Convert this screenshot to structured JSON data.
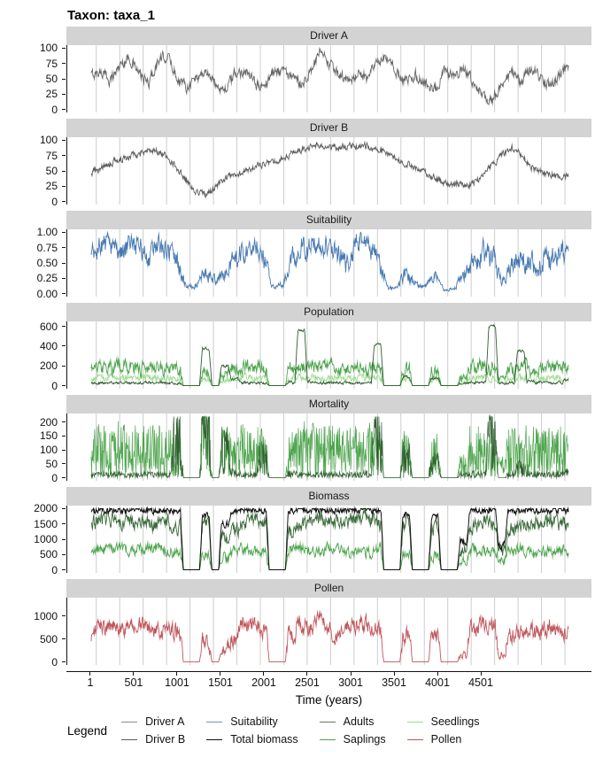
{
  "title": "Taxon: taxa_1",
  "legend": {
    "title": "Legend",
    "entries": [
      {
        "label": "Driver A",
        "color": "#8c8c8c"
      },
      {
        "label": "Driver B",
        "color": "#5c5c5c"
      },
      {
        "label": "Suitability",
        "color": "#6f94c4"
      },
      {
        "label": "Total biomass",
        "color": "#111111"
      },
      {
        "label": "Adults",
        "color": "#5f7d57"
      },
      {
        "label": "Saplings",
        "color": "#4da44d"
      },
      {
        "label": "Seedlings",
        "color": "#a0dd94"
      },
      {
        "label": "Pollen",
        "color": "#c0565c"
      }
    ]
  },
  "chart_data": {
    "type": "line",
    "xlabel": "Time (years)",
    "x_domain": [
      1,
      5501
    ],
    "x_ticks": [
      1,
      501,
      1001,
      1501,
      2001,
      2501,
      3001,
      3501,
      4001,
      4501
    ],
    "grid": {
      "start": 60,
      "step": 270,
      "count": 21,
      "color": "#cccccc"
    },
    "x": [
      1,
      111,
      221,
      331,
      441,
      551,
      661,
      771,
      881,
      991,
      1101,
      1211,
      1321,
      1431,
      1541,
      1651,
      1761,
      1871,
      1981,
      2091,
      2201,
      2311,
      2421,
      2531,
      2641,
      2751,
      2861,
      2971,
      3081,
      3191,
      3301,
      3411,
      3521,
      3631,
      3741,
      3851,
      3961,
      4071,
      4181,
      4291,
      4401,
      4511,
      4621,
      4731,
      4841,
      4951,
      5061,
      5171,
      5281,
      5391,
      5501
    ],
    "panels": [
      {
        "title": "Driver A",
        "ylim": [
          0,
          100
        ],
        "yticks": [
          {
            "v": 0,
            "label": "0"
          },
          {
            "v": 25,
            "label": "25"
          },
          {
            "v": 50,
            "label": "50"
          },
          {
            "v": 75,
            "label": "75"
          },
          {
            "v": 100,
            "label": "100"
          }
        ],
        "series": [
          {
            "name": "driver_a",
            "color": "#666666",
            "mode": "walk",
            "amp": 7,
            "nscale": 0,
            "sharp": false,
            "width": 0.9,
            "values": [
              55,
              62,
              48,
              72,
              85,
              58,
              42,
              78,
              88,
              52,
              38,
              52,
              62,
              42,
              32,
              55,
              65,
              45,
              35,
              60,
              68,
              50,
              42,
              62,
              92,
              72,
              55,
              45,
              60,
              50,
              78,
              82,
              60,
              45,
              55,
              42,
              32,
              62,
              50,
              68,
              45,
              18,
              12,
              45,
              60,
              42,
              68,
              55,
              38,
              52,
              72
            ]
          }
        ]
      },
      {
        "title": "Driver B",
        "ylim": [
          0,
          100
        ],
        "yticks": [
          {
            "v": 0,
            "label": "0"
          },
          {
            "v": 25,
            "label": "25"
          },
          {
            "v": 50,
            "label": "50"
          },
          {
            "v": 75,
            "label": "75"
          },
          {
            "v": 100,
            "label": "100"
          }
        ],
        "series": [
          {
            "name": "driver_b",
            "color": "#5c5c5c",
            "mode": "walk",
            "amp": 4.5,
            "nscale": 0,
            "sharp": false,
            "width": 0.9,
            "values": [
              48,
              55,
              62,
              68,
              74,
              80,
              85,
              82,
              72,
              55,
              35,
              18,
              12,
              22,
              35,
              45,
              50,
              55,
              60,
              65,
              70,
              78,
              84,
              88,
              91,
              90,
              88,
              89,
              91,
              90,
              86,
              80,
              70,
              62,
              55,
              46,
              38,
              32,
              28,
              26,
              30,
              42,
              58,
              75,
              88,
              78,
              58,
              48,
              44,
              42,
              40
            ]
          }
        ]
      },
      {
        "title": "Suitability",
        "ylim": [
          0,
          1
        ],
        "yticks": [
          {
            "v": 0,
            "label": "0.00"
          },
          {
            "v": 0.25,
            "label": "0.25"
          },
          {
            "v": 0.5,
            "label": "0.50"
          },
          {
            "v": 0.75,
            "label": "0.75"
          },
          {
            "v": 1,
            "label": "1.00"
          }
        ],
        "series": [
          {
            "name": "suitability",
            "color": "#4678b0",
            "mode": "walk",
            "amp": 0.15,
            "nscale": 0.5,
            "sharp": false,
            "width": 0.9,
            "values": [
              0.55,
              0.75,
              0.85,
              0.65,
              0.8,
              0.75,
              0.6,
              0.8,
              0.7,
              0.5,
              0.1,
              0.15,
              0.35,
              0.2,
              0.3,
              0.5,
              0.7,
              0.8,
              0.6,
              0.1,
              0.15,
              0.5,
              0.8,
              0.7,
              0.85,
              0.75,
              0.6,
              0.5,
              0.9,
              0.85,
              0.6,
              0.1,
              0.08,
              0.35,
              0.15,
              0.1,
              0.3,
              0.05,
              0.08,
              0.3,
              0.5,
              0.65,
              0.6,
              0.2,
              0.45,
              0.6,
              0.5,
              0.45,
              0.55,
              0.65,
              0.6
            ]
          }
        ]
      },
      {
        "title": "Population",
        "ylim": [
          0,
          620
        ],
        "yticks": [
          {
            "v": 0,
            "label": "0"
          },
          {
            "v": 200,
            "label": "200"
          },
          {
            "v": 400,
            "label": "400"
          },
          {
            "v": 600,
            "label": "600"
          }
        ],
        "series": [
          {
            "name": "seedlings",
            "color": "#a0dd94",
            "mode": "walk",
            "amp": 28,
            "nscale": 0.12,
            "sharp": true,
            "width": 0.9,
            "values": [
              70,
              80,
              75,
              85,
              70,
              78,
              80,
              75,
              72,
              65,
              0,
              0,
              60,
              0,
              50,
              70,
              80,
              75,
              70,
              0,
              0,
              75,
              80,
              78,
              75,
              80,
              75,
              72,
              78,
              80,
              75,
              0,
              0,
              65,
              0,
              0,
              60,
              0,
              0,
              35,
              75,
              80,
              75,
              30,
              70,
              78,
              75,
              72,
              75,
              78,
              75
            ]
          },
          {
            "name": "saplings",
            "color": "#4da44d",
            "mode": "walk",
            "amp": 55,
            "nscale": 0.25,
            "sharp": true,
            "width": 0.9,
            "values": [
              170,
              190,
              180,
              200,
              170,
              185,
              190,
              180,
              175,
              160,
              0,
              0,
              150,
              0,
              120,
              170,
              190,
              180,
              170,
              0,
              0,
              180,
              190,
              185,
              180,
              190,
              180,
              175,
              185,
              190,
              180,
              0,
              0,
              160,
              0,
              0,
              150,
              0,
              0,
              80,
              180,
              190,
              180,
              70,
              170,
              185,
              180,
              175,
              180,
              185,
              180
            ]
          },
          {
            "name": "adults",
            "color": "#2f5d2f",
            "mode": "walk",
            "amp": 12,
            "nscale": 0.04,
            "sharp": true,
            "width": 0.9,
            "values": [
              25,
              28,
              30,
              28,
              26,
              28,
              30,
              28,
              27,
              25,
              0,
              0,
              380,
              0,
              200,
              60,
              30,
              28,
              27,
              0,
              0,
              30,
              560,
              40,
              30,
              28,
              30,
              28,
              27,
              30,
              420,
              0,
              0,
              90,
              0,
              0,
              80,
              0,
              0,
              20,
              30,
              40,
              600,
              20,
              30,
              350,
              40,
              30,
              28,
              30,
              60
            ]
          }
        ]
      },
      {
        "title": "Mortality",
        "ylim": [
          0,
          220
        ],
        "yticks": [
          {
            "v": 0,
            "label": "0"
          },
          {
            "v": 50,
            "label": "50"
          },
          {
            "v": 100,
            "label": "100"
          },
          {
            "v": 150,
            "label": "150"
          },
          {
            "v": 200,
            "label": "200"
          }
        ],
        "series": [
          {
            "name": "saplings_mortality",
            "color": "#4da44d",
            "mode": "spike",
            "amp": 1,
            "nscale": 0,
            "sharp": true,
            "width": 0.7,
            "values": [
              80,
              90,
              85,
              95,
              80,
              88,
              90,
              85,
              82,
              75,
              0,
              0,
              140,
              0,
              90,
              80,
              90,
              85,
              80,
              0,
              0,
              85,
              95,
              90,
              85,
              90,
              85,
              82,
              88,
              90,
              85,
              0,
              0,
              80,
              0,
              0,
              75,
              0,
              0,
              40,
              85,
              90,
              85,
              35,
              80,
              88,
              85,
              82,
              85,
              88,
              85
            ]
          },
          {
            "name": "adults_mortality",
            "color": "#2f5d2f",
            "mode": "spike",
            "amp": 1,
            "nscale": 0,
            "sharp": true,
            "width": 0.7,
            "values": [
              8,
              10,
              9,
              10,
              8,
              9,
              10,
              9,
              9,
              120,
              0,
              0,
              180,
              0,
              90,
              15,
              10,
              9,
              60,
              0,
              0,
              12,
              10,
              9,
              10,
              9,
              10,
              9,
              9,
              12,
              170,
              0,
              0,
              60,
              0,
              0,
              50,
              0,
              0,
              10,
              12,
              10,
              150,
              0,
              10,
              30,
              10,
              9,
              10,
              12,
              15
            ]
          }
        ]
      },
      {
        "title": "Biomass",
        "ylim": [
          0,
          2000
        ],
        "yticks": [
          {
            "v": 0,
            "label": "0"
          },
          {
            "v": 500,
            "label": "500"
          },
          {
            "v": 1000,
            "label": "1000"
          },
          {
            "v": 1500,
            "label": "1500"
          },
          {
            "v": 2000,
            "label": "2000"
          }
        ],
        "series": [
          {
            "name": "saplings_biomass",
            "color": "#4da44d",
            "mode": "walk",
            "amp": 140,
            "nscale": 0.2,
            "sharp": true,
            "width": 0.9,
            "values": [
              600,
              700,
              650,
              700,
              600,
              650,
              700,
              750,
              600,
              550,
              0,
              0,
              500,
              0,
              400,
              650,
              700,
              600,
              550,
              0,
              0,
              650,
              700,
              600,
              550,
              700,
              650,
              500,
              550,
              600,
              650,
              0,
              0,
              500,
              0,
              0,
              450,
              0,
              0,
              300,
              650,
              600,
              650,
              300,
              600,
              650,
              600,
              550,
              600,
              650,
              600
            ]
          },
          {
            "name": "adults_biomass",
            "color": "#3a6b3a",
            "mode": "walk",
            "amp": 190,
            "nscale": 0.2,
            "sharp": true,
            "width": 0.9,
            "values": [
              1500,
              1600,
              1650,
              1500,
              1550,
              1600,
              1500,
              1450,
              1550,
              1400,
              0,
              0,
              1500,
              0,
              1100,
              1300,
              1500,
              1600,
              1550,
              0,
              0,
              1300,
              1500,
              1600,
              1650,
              1500,
              1550,
              1650,
              1600,
              1650,
              1500,
              0,
              0,
              1500,
              0,
              0,
              1400,
              0,
              0,
              600,
              1400,
              1550,
              1500,
              600,
              1300,
              1450,
              1500,
              1550,
              1600,
              1500,
              1550
            ]
          },
          {
            "name": "total_biomass",
            "color": "#111111",
            "mode": "walk",
            "amp": 90,
            "nscale": 0.2,
            "sharp": true,
            "width": 1,
            "cap": 2000,
            "values": [
              1900,
              1950,
              1960,
              1950,
              1950,
              1960,
              1950,
              1940,
              1950,
              1900,
              0,
              0,
              1800,
              0,
              1500,
              1900,
              1950,
              1960,
              1950,
              0,
              0,
              1900,
              1950,
              1960,
              1950,
              1950,
              1960,
              1950,
              1950,
              1960,
              1900,
              0,
              0,
              1850,
              0,
              0,
              1700,
              0,
              0,
              900,
              1950,
              1960,
              1950,
              800,
              1900,
              1950,
              1950,
              1950,
              1960,
              1950,
              1950
            ]
          }
        ]
      },
      {
        "title": "Pollen",
        "ylim": [
          0,
          1330
        ],
        "yticks": [
          {
            "v": 0,
            "label": "0"
          },
          {
            "v": 500,
            "label": "500"
          },
          {
            "v": 1000,
            "label": "1000"
          }
        ],
        "series": [
          {
            "name": "pollen",
            "color": "#c0565c",
            "mode": "walk",
            "amp": 150,
            "nscale": 0.25,
            "sharp": true,
            "width": 0.9,
            "values": [
              500,
              750,
              800,
              750,
              780,
              820,
              760,
              700,
              750,
              650,
              0,
              0,
              450,
              0,
              300,
              550,
              800,
              850,
              700,
              0,
              0,
              600,
              800,
              750,
              900,
              700,
              650,
              800,
              850,
              780,
              700,
              0,
              0,
              600,
              0,
              0,
              500,
              0,
              0,
              150,
              700,
              800,
              750,
              150,
              600,
              700,
              650,
              700,
              750,
              680,
              700
            ]
          }
        ]
      }
    ]
  }
}
